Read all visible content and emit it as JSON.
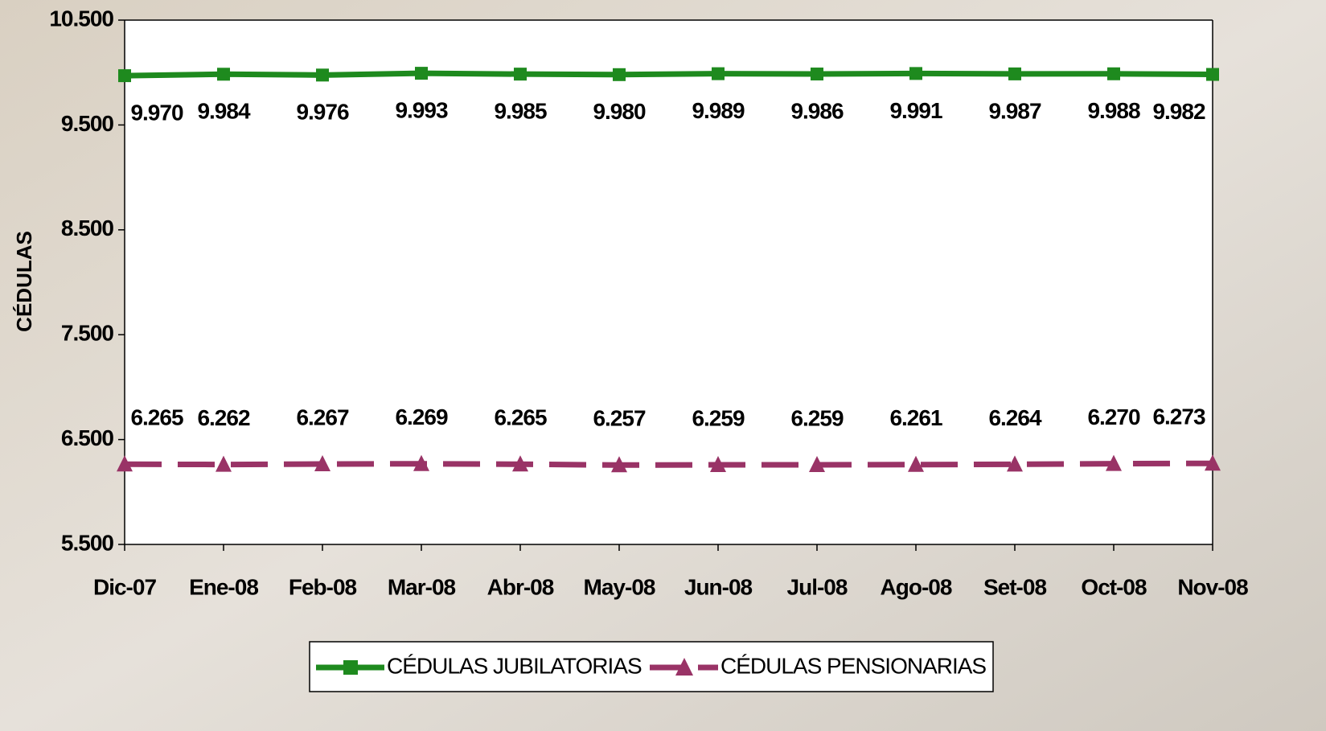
{
  "chart_data": {
    "type": "line",
    "y_label": "CÉDULAS",
    "categories": [
      "Dic-07",
      "Ene-08",
      "Feb-08",
      "Mar-08",
      "Abr-08",
      "May-08",
      "Jun-08",
      "Jul-08",
      "Ago-08",
      "Set-08",
      "Oct-08",
      "Nov-08"
    ],
    "series": [
      {
        "name": "CÉDULAS JUBILATORIAS",
        "color": "#1e8a1e",
        "marker": "square",
        "dashed": false,
        "values": [
          9970,
          9984,
          9976,
          9993,
          9985,
          9980,
          9989,
          9986,
          9991,
          9987,
          9988,
          9982
        ],
        "value_labels": [
          "9.970",
          "9.984",
          "9.976",
          "9.993",
          "9.985",
          "9.980",
          "9.989",
          "9.986",
          "9.991",
          "9.987",
          "9.988",
          "9.982"
        ]
      },
      {
        "name": "CÉDULAS PENSIONARIAS",
        "color": "#993366",
        "marker": "triangle",
        "dashed": true,
        "values": [
          6265,
          6262,
          6267,
          6269,
          6265,
          6257,
          6259,
          6259,
          6261,
          6264,
          6270,
          6273
        ],
        "value_labels": [
          "6.265",
          "6.262",
          "6.267",
          "6.269",
          "6.265",
          "6.257",
          "6.259",
          "6.259",
          "6.261",
          "6.264",
          "6.270",
          "6.273"
        ]
      }
    ],
    "ylim": [
      5500,
      10500
    ],
    "yticks": [
      {
        "value": 5500,
        "label": "5.500"
      },
      {
        "value": 6500,
        "label": "6.500"
      },
      {
        "value": 7500,
        "label": "7.500"
      },
      {
        "value": 8500,
        "label": "8.500"
      },
      {
        "value": 9500,
        "label": "9.500"
      },
      {
        "value": 10500,
        "label": "10.500"
      }
    ],
    "grid": false,
    "legend": "bottom"
  }
}
